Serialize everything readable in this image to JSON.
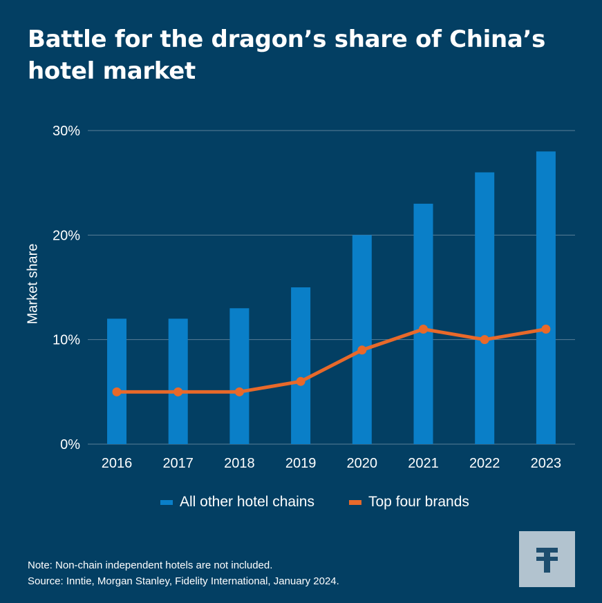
{
  "title": "Battle for the dragon’s share of China’s hotel market",
  "note": "Note: Non-chain independent hotels are not included.",
  "source": "Source: Inntie, Morgan Stanley, Fidelity International, January 2024.",
  "colors": {
    "background": "#033f63",
    "bars": "#0a7fc8",
    "line": "#e8692a",
    "grid": "#5a7f97",
    "logo_bg": "#b2c3cf",
    "logo_mark": "#1d4d6e"
  },
  "logo_icon": "fidelity-f-logo-icon",
  "chart_data": {
    "type": "bar",
    "categories": [
      "2016",
      "2017",
      "2018",
      "2019",
      "2020",
      "2021",
      "2022",
      "2023"
    ],
    "series": [
      {
        "name": "All other hotel chains",
        "type": "bar",
        "values": [
          12,
          12,
          13,
          15,
          20,
          23,
          26,
          28
        ]
      },
      {
        "name": "Top four brands",
        "type": "line",
        "values": [
          5,
          5,
          5,
          6,
          9,
          11,
          10,
          11
        ]
      }
    ],
    "ylabel": "Market share",
    "ylim": [
      0,
      30
    ],
    "yticks": [
      "0%",
      "10%",
      "20%",
      "30%"
    ],
    "grid": true,
    "legend": "bottom"
  }
}
